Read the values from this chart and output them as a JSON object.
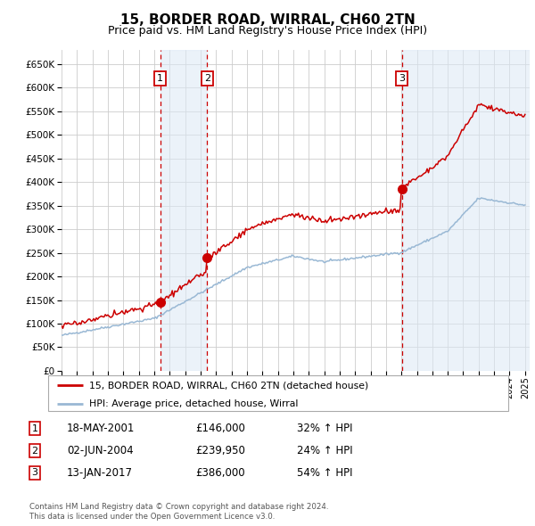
{
  "title": "15, BORDER ROAD, WIRRAL, CH60 2TN",
  "subtitle": "Price paid vs. HM Land Registry's House Price Index (HPI)",
  "ylim": [
    0,
    680000
  ],
  "yticks": [
    0,
    50000,
    100000,
    150000,
    200000,
    250000,
    300000,
    350000,
    400000,
    450000,
    500000,
    550000,
    600000,
    650000
  ],
  "xlim_start": 1995.0,
  "xlim_end": 2025.3,
  "background_color": "#ffffff",
  "grid_color": "#cccccc",
  "red_line_color": "#cc0000",
  "blue_line_color": "#99b8d4",
  "sale_box_color": "#cc0000",
  "sale_shade_color": "#dce9f5",
  "sale_shade_alpha": 0.55,
  "purchases": [
    {
      "year": 2001.38,
      "price": 146000,
      "label": "1"
    },
    {
      "year": 2004.42,
      "price": 239950,
      "label": "2"
    },
    {
      "year": 2017.04,
      "price": 386000,
      "label": "3"
    }
  ],
  "legend_entries": [
    {
      "label": "15, BORDER ROAD, WIRRAL, CH60 2TN (detached house)",
      "color": "#cc0000"
    },
    {
      "label": "HPI: Average price, detached house, Wirral",
      "color": "#99b8d4"
    }
  ],
  "footer_lines": [
    "Contains HM Land Registry data © Crown copyright and database right 2024.",
    "This data is licensed under the Open Government Licence v3.0."
  ],
  "table_rows": [
    {
      "num": "1",
      "date": "18-MAY-2001",
      "price": "£146,000",
      "pct": "32% ↑ HPI"
    },
    {
      "num": "2",
      "date": "02-JUN-2004",
      "price": "£239,950",
      "pct": "24% ↑ HPI"
    },
    {
      "num": "3",
      "date": "13-JAN-2017",
      "price": "£386,000",
      "pct": "54% ↑ HPI"
    }
  ]
}
